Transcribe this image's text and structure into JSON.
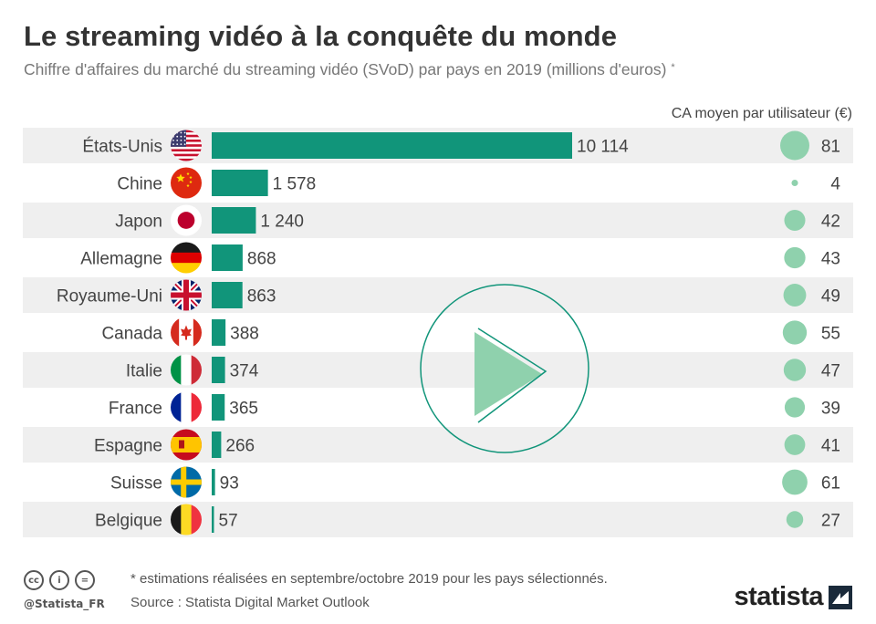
{
  "title": "Le streaming vidéo à la conquête du monde",
  "subtitle": "Chiffre d'affaires du marché du streaming vidéo (SVoD) par pays en 2019 (millions d'euros)",
  "subtitle_mark": "*",
  "column_header": "CA moyen par utilisateur (€)",
  "colors": {
    "bar": "#11957a",
    "bubble": "#8fd1ad",
    "row_stripe": "#efefef",
    "play_outline": "#11957a",
    "play_fill": "#8fd1ad"
  },
  "chart_data": {
    "type": "bar",
    "orientation": "horizontal",
    "categories": [
      "États-Unis",
      "Chine",
      "Japon",
      "Allemagne",
      "Royaume-Uni",
      "Canada",
      "Italie",
      "France",
      "Espagne",
      "Suisse",
      "Belgique"
    ],
    "series": [
      {
        "values": [
          10114,
          1578,
          1240,
          868,
          863,
          388,
          374,
          365,
          266,
          93,
          57
        ],
        "labels": [
          "10 114",
          "1 578",
          "1 240",
          "868",
          "863",
          "388",
          "374",
          "365",
          "266",
          "93",
          "57"
        ]
      },
      {
        "name": "CA moyen par utilisateur (€)",
        "values": [
          81,
          4,
          42,
          43,
          49,
          55,
          47,
          39,
          41,
          61,
          27
        ]
      }
    ],
    "flags": [
      "us",
      "cn",
      "jp",
      "de",
      "gb",
      "ca",
      "it",
      "fr",
      "es",
      "se",
      "be"
    ],
    "xlim": [
      0,
      10114
    ],
    "grid": false
  },
  "footer": {
    "note": "* estimations réalisées en septembre/octobre 2019 pour les pays sélectionnés.",
    "source": "Source : Statista Digital Market Outlook",
    "handle": "@Statista_FR",
    "brand": "statista",
    "license_icons": [
      "cc-icon",
      "by-icon",
      "nd-icon"
    ]
  }
}
